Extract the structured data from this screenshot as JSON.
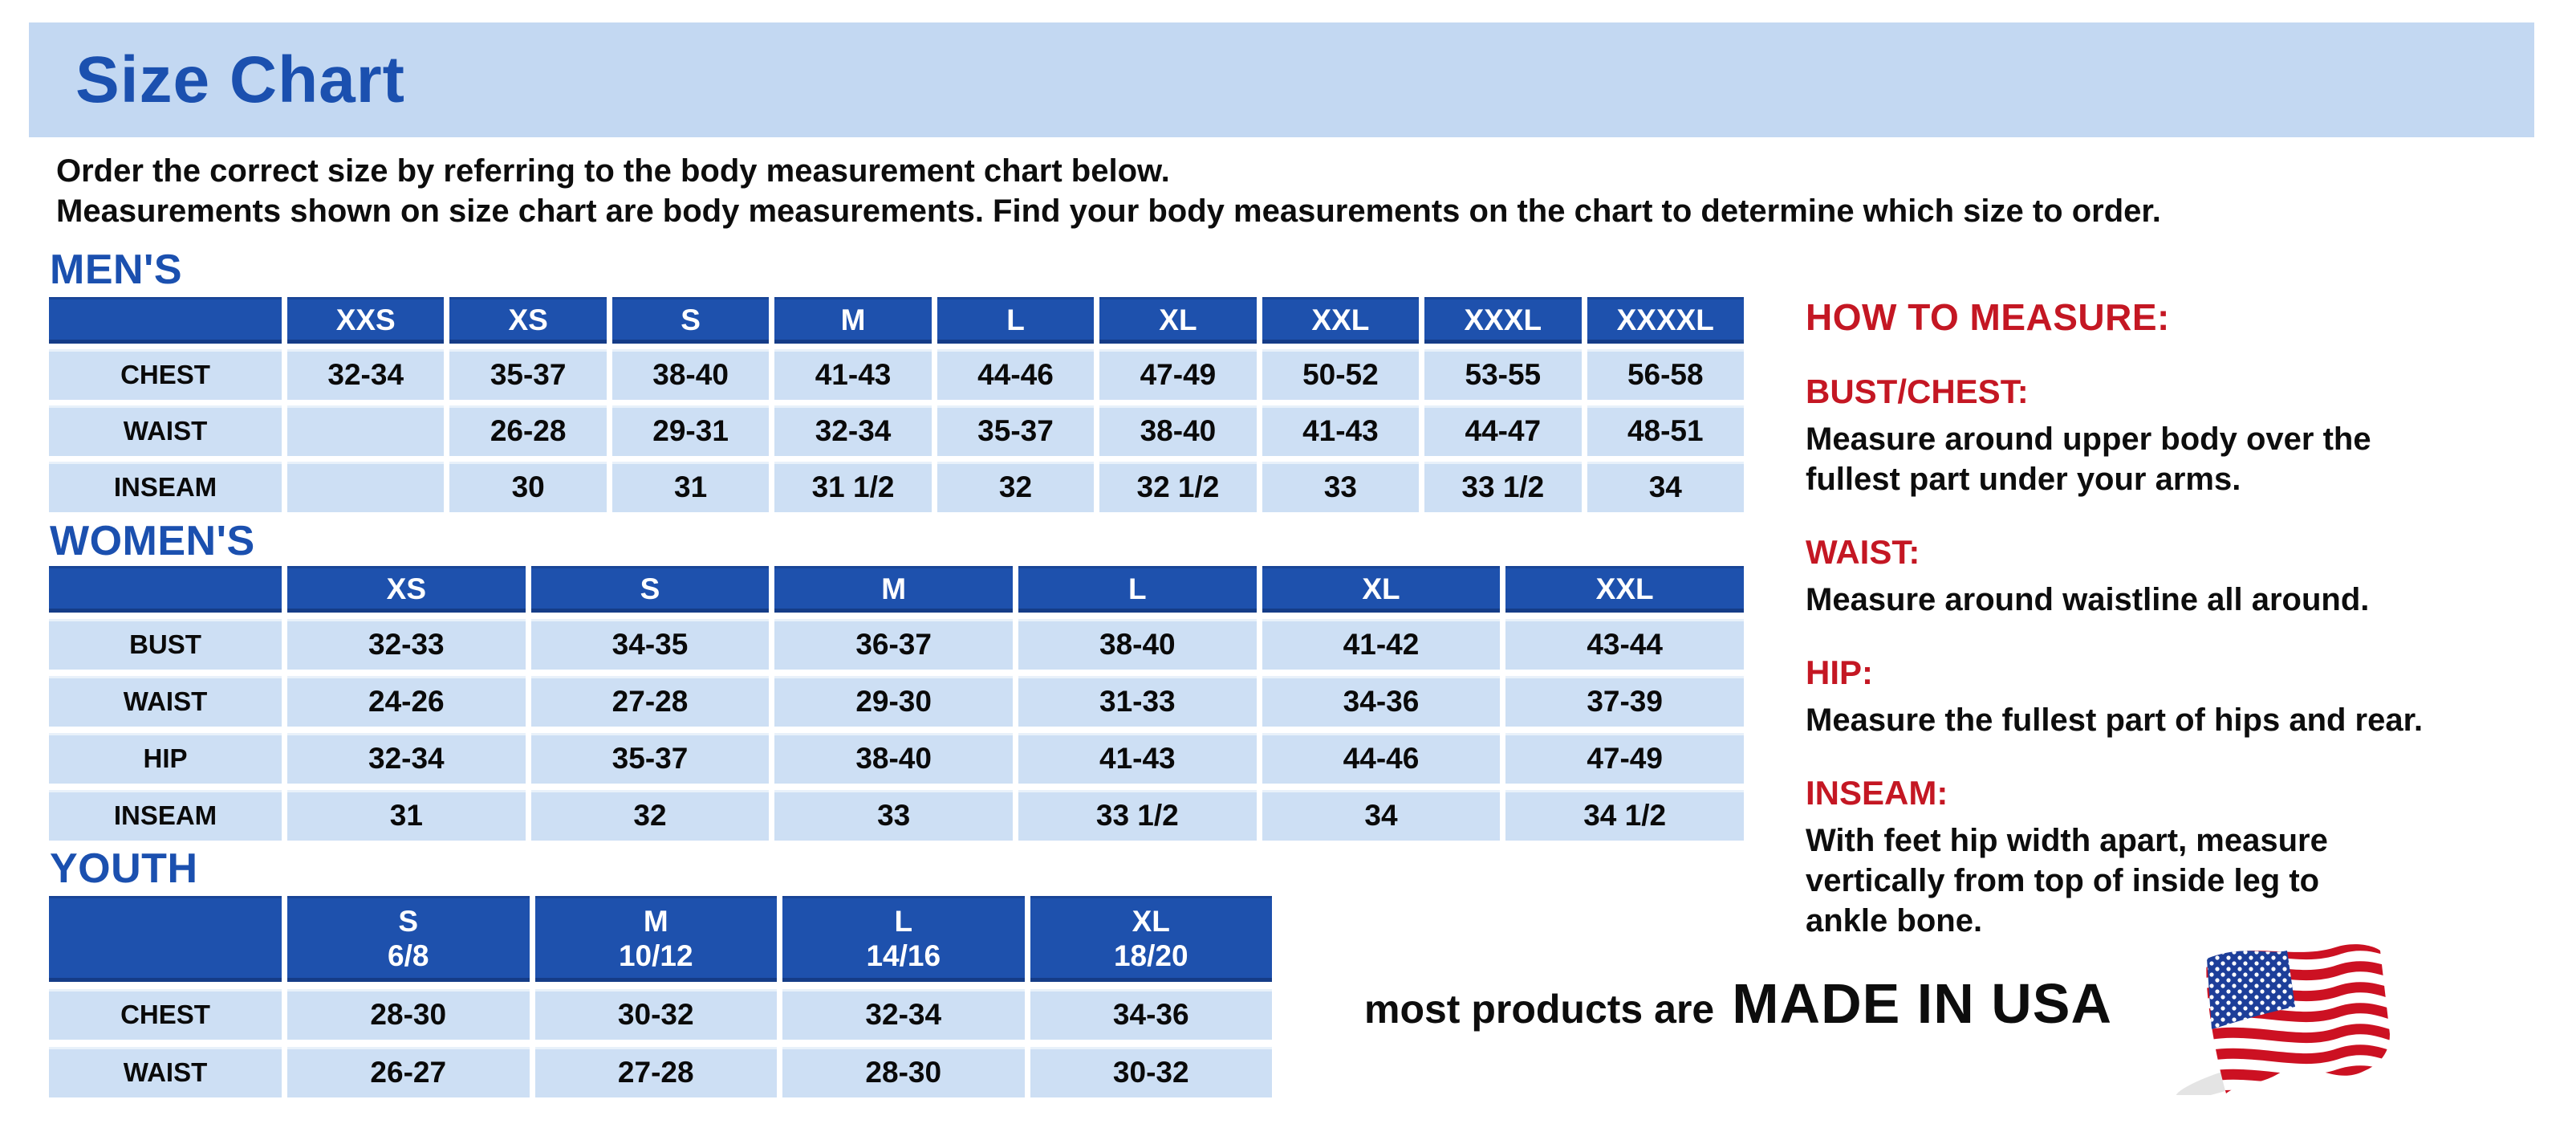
{
  "page": {
    "title": "Size Chart",
    "intro_line1": "Order the correct size by referring to the body measurement chart below.",
    "intro_line2": "Measurements shown on size chart are body measurements.  Find your body measurements on the chart to determine which size to order."
  },
  "colors": {
    "banner_bg": "#c3d8f2",
    "header_blue": "#1e51ad",
    "cell_blue": "#cddff4",
    "title_blue": "#1b50af",
    "accent_red": "#c41723",
    "flag_red": "#cc1122",
    "flag_blue": "#1d3e99"
  },
  "tables": {
    "mens": {
      "section_label": "MEN'S",
      "columns": [
        "XXS",
        "XS",
        "S",
        "M",
        "L",
        "XL",
        "XXL",
        "XXXL",
        "XXXXL"
      ],
      "rows": [
        {
          "label": "CHEST",
          "values": [
            "32-34",
            "35-37",
            "38-40",
            "41-43",
            "44-46",
            "47-49",
            "50-52",
            "53-55",
            "56-58"
          ]
        },
        {
          "label": "WAIST",
          "values": [
            "",
            "26-28",
            "29-31",
            "32-34",
            "35-37",
            "38-40",
            "41-43",
            "44-47",
            "48-51"
          ]
        },
        {
          "label": "INSEAM",
          "values": [
            "",
            "30",
            "31",
            "31 1/2",
            "32",
            "32 1/2",
            "33",
            "33 1/2",
            "34"
          ]
        }
      ]
    },
    "womens": {
      "section_label": "WOMEN'S",
      "columns": [
        "XS",
        "S",
        "M",
        "L",
        "XL",
        "XXL"
      ],
      "rows": [
        {
          "label": "BUST",
          "values": [
            "32-33",
            "34-35",
            "36-37",
            "38-40",
            "41-42",
            "43-44"
          ]
        },
        {
          "label": "WAIST",
          "values": [
            "24-26",
            "27-28",
            "29-30",
            "31-33",
            "34-36",
            "37-39"
          ]
        },
        {
          "label": "HIP",
          "values": [
            "32-34",
            "35-37",
            "38-40",
            "41-43",
            "44-46",
            "47-49"
          ]
        },
        {
          "label": "INSEAM",
          "values": [
            "31",
            "32",
            "33",
            "33 1/2",
            "34",
            "34 1/2"
          ]
        }
      ]
    },
    "youth": {
      "section_label": "YOUTH",
      "columns": [
        {
          "size": "S",
          "range": "6/8"
        },
        {
          "size": "M",
          "range": "10/12"
        },
        {
          "size": "L",
          "range": "14/16"
        },
        {
          "size": "XL",
          "range": "18/20"
        }
      ],
      "rows": [
        {
          "label": "CHEST",
          "values": [
            "28-30",
            "30-32",
            "32-34",
            "34-36"
          ]
        },
        {
          "label": "WAIST",
          "values": [
            "26-27",
            "27-28",
            "28-30",
            "30-32"
          ]
        }
      ]
    }
  },
  "how_to_measure": {
    "heading": "HOW TO MEASURE:",
    "items": [
      {
        "label": "BUST/CHEST:",
        "text": "Measure around upper body over the\nfullest part under your arms."
      },
      {
        "label": "WAIST:",
        "text": "Measure around waistline all around."
      },
      {
        "label": "HIP:",
        "text": "Measure the fullest part of hips and rear."
      },
      {
        "label": "INSEAM:",
        "text": "With feet hip width apart, measure\nvertically from top of inside leg to\nankle bone."
      }
    ]
  },
  "footer": {
    "prefix": "most products are",
    "made_in": "MADE IN USA",
    "flag_icon": "usa-flag-icon"
  }
}
